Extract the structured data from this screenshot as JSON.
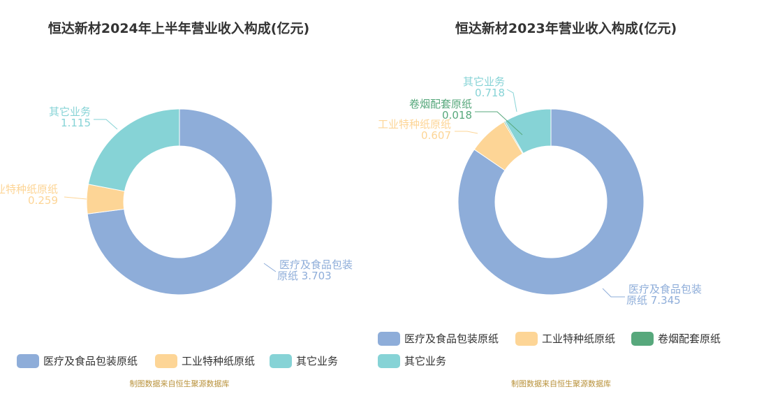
{
  "chart_data": [
    {
      "type": "pie",
      "title": "恒达新材2024年上半年营业收入构成(亿元)",
      "donut": true,
      "slices": [
        {
          "label": "医疗及食品包装原纸",
          "value": 3.703,
          "color": "#8eadd9"
        },
        {
          "label": "工业特种纸原纸",
          "value": 0.259,
          "color": "#fdd596"
        },
        {
          "label": "其它业务",
          "value": 1.115,
          "color": "#86d3d6"
        }
      ],
      "labels": [
        {
          "lines": [
            "医疗及食品包装",
            "原纸 3.703"
          ]
        },
        {
          "lines": [
            "工业特种纸原纸",
            "0.259"
          ]
        },
        {
          "lines": [
            "其它业务",
            "1.115"
          ]
        }
      ],
      "legend": [
        "医疗及食品包装原纸",
        "工业特种纸原纸",
        "其它业务"
      ],
      "source": "制图数据来自恒生聚源数据库"
    },
    {
      "type": "pie",
      "title": "恒达新材2023年营业收入构成(亿元)",
      "donut": true,
      "slices": [
        {
          "label": "医疗及食品包装原纸",
          "value": 7.345,
          "color": "#8eadd9"
        },
        {
          "label": "工业特种纸原纸",
          "value": 0.607,
          "color": "#fdd596"
        },
        {
          "label": "卷烟配套原纸",
          "value": 0.018,
          "color": "#57a87c"
        },
        {
          "label": "其它业务",
          "value": 0.718,
          "color": "#86d3d6"
        }
      ],
      "labels": [
        {
          "lines": [
            "医疗及食品包装",
            "原纸 7.345"
          ]
        },
        {
          "lines": [
            "工业特种纸原纸",
            "0.607"
          ]
        },
        {
          "lines": [
            "卷烟配套原纸",
            "0.018"
          ]
        },
        {
          "lines": [
            "其它业务",
            "0.718"
          ]
        }
      ],
      "legend": [
        "医疗及食品包装原纸",
        "工业特种纸原纸",
        "卷烟配套原纸",
        "其它业务"
      ],
      "source": "制图数据来自恒生聚源数据库"
    }
  ]
}
